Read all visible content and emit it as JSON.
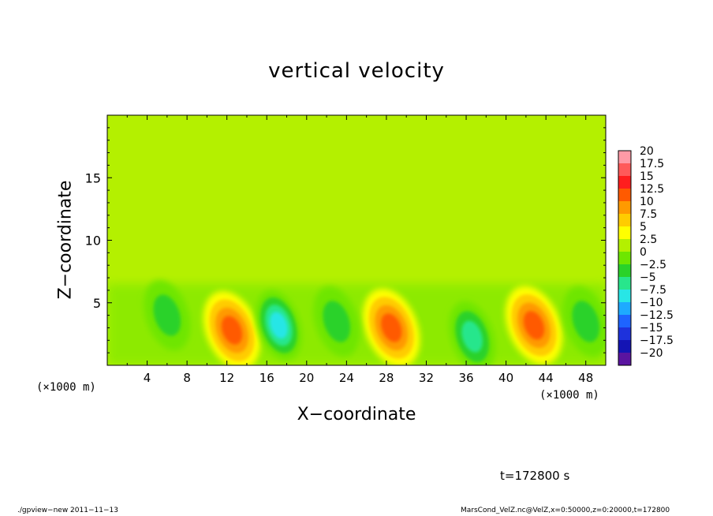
{
  "chart_data": {
    "type": "heatmap",
    "title": "vertical velocity",
    "xlabel": "X−coordinate",
    "ylabel": "Z−coordinate",
    "x_unit_left": "(×1000 m)",
    "x_unit_right": "(×1000 m)",
    "xlim": [
      0,
      50
    ],
    "ylim": [
      0,
      20
    ],
    "x_ticks": [
      4,
      8,
      12,
      16,
      20,
      24,
      28,
      32,
      36,
      40,
      44,
      48
    ],
    "y_ticks": [
      5,
      10,
      15
    ],
    "colorbar": {
      "levels": [
        20,
        17.5,
        15,
        12.5,
        10,
        7.5,
        5,
        2.5,
        0,
        -2.5,
        -5,
        -7.5,
        -10,
        -12.5,
        -15,
        -17.5,
        -20
      ],
      "labels": [
        "20",
        "17.5",
        "15",
        "12.5",
        "10",
        "7.5",
        "5",
        "2.5",
        "0",
        "−2.5",
        "−5",
        "−7.5",
        "−10",
        "−12.5",
        "−15",
        "−17.5",
        "−20"
      ],
      "colors": [
        "#ff9aa6",
        "#ff5a5a",
        "#ff1e1e",
        "#ff5a00",
        "#ff9a00",
        "#ffcc00",
        "#ffff00",
        "#b4f000",
        "#6ee600",
        "#2ad22a",
        "#28e68c",
        "#28e6e6",
        "#1eaaff",
        "#1e64ff",
        "#1e32dc",
        "#1414b4",
        "#5a14a0"
      ]
    },
    "features": [
      {
        "type": "updraft",
        "x": 12.5,
        "z": 2.8,
        "w": 11
      },
      {
        "type": "updraft",
        "x": 28.5,
        "z": 3.0,
        "w": 11
      },
      {
        "type": "updraft",
        "x": 42.8,
        "z": 3.2,
        "w": 11
      },
      {
        "type": "downdraft",
        "x": 17.2,
        "z": 3.2,
        "w": -10
      },
      {
        "type": "downdraft",
        "x": 6.0,
        "z": 4.0,
        "w": -6
      },
      {
        "type": "downdraft",
        "x": 23.0,
        "z": 3.5,
        "w": -5
      },
      {
        "type": "downdraft",
        "x": 36.6,
        "z": 2.3,
        "w": -7.5
      },
      {
        "type": "downdraft",
        "x": 48.0,
        "z": 3.5,
        "w": -5
      }
    ],
    "grid": false
  },
  "annotations": {
    "time": "t=172800 s",
    "footer_left": "./gpview−new   2011−11−13",
    "footer_right": "MarsCond_VelZ.nc@VelZ,x=0:50000,z=0:20000,t=172800"
  }
}
